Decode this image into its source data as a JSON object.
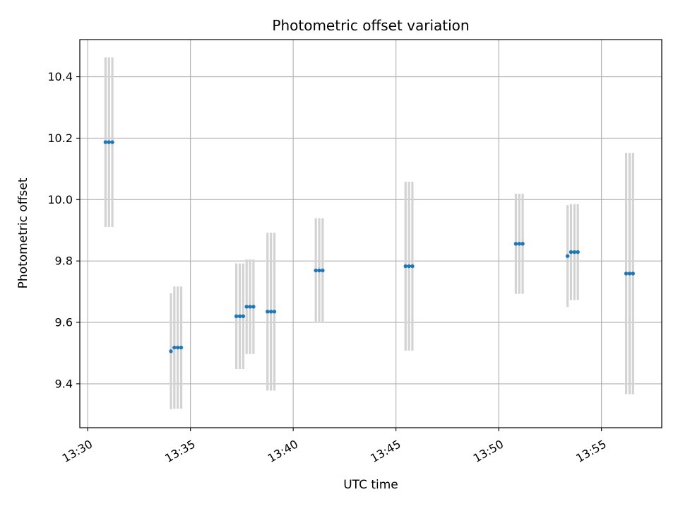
{
  "chart_data": {
    "type": "scatter",
    "title": "Photometric offset variation",
    "xlabel": "UTC time",
    "ylabel": "Photometric offset",
    "x_tick_labels": [
      "13:30",
      "13:35",
      "13:40",
      "13:45",
      "13:50",
      "13:55"
    ],
    "y_tick_labels": [
      "9.4",
      "9.6",
      "9.8",
      "10.0",
      "10.2",
      "10.4"
    ],
    "x_ticks": [
      "13:30",
      "13:35",
      "13:40",
      "13:45",
      "13:50",
      "13:55"
    ],
    "y_ticks": [
      9.4,
      9.6,
      9.8,
      10.0,
      10.2,
      10.4
    ],
    "xlim": [
      "13:29:37",
      "13:57:56"
    ],
    "ylim": [
      9.257,
      10.521
    ],
    "grid": true,
    "series": [
      {
        "marker_color": "#1f77b4",
        "errorbar_color": "#d3d3d3",
        "points": [
          {
            "x": "13:30:52",
            "y": 10.187,
            "err": 0.276
          },
          {
            "x": "13:31:02",
            "y": 10.187,
            "err": 0.276
          },
          {
            "x": "13:31:12",
            "y": 10.187,
            "err": 0.276
          },
          {
            "x": "13:34:03",
            "y": 9.506,
            "err": 0.189
          },
          {
            "x": "13:34:13",
            "y": 9.518,
            "err": 0.199
          },
          {
            "x": "13:34:23",
            "y": 9.518,
            "err": 0.199
          },
          {
            "x": "13:34:33",
            "y": 9.518,
            "err": 0.199
          },
          {
            "x": "13:37:14",
            "y": 9.62,
            "err": 0.172
          },
          {
            "x": "13:37:24",
            "y": 9.62,
            "err": 0.172
          },
          {
            "x": "13:37:34",
            "y": 9.62,
            "err": 0.172
          },
          {
            "x": "13:37:44",
            "y": 9.651,
            "err": 0.154
          },
          {
            "x": "13:37:54",
            "y": 9.651,
            "err": 0.154
          },
          {
            "x": "13:38:04",
            "y": 9.651,
            "err": 0.154
          },
          {
            "x": "13:38:45",
            "y": 9.635,
            "err": 0.257
          },
          {
            "x": "13:38:55",
            "y": 9.635,
            "err": 0.257
          },
          {
            "x": "13:39:05",
            "y": 9.635,
            "err": 0.257
          },
          {
            "x": "13:41:06",
            "y": 9.769,
            "err": 0.17
          },
          {
            "x": "13:41:16",
            "y": 9.769,
            "err": 0.17
          },
          {
            "x": "13:41:26",
            "y": 9.769,
            "err": 0.17
          },
          {
            "x": "13:45:28",
            "y": 9.783,
            "err": 0.275
          },
          {
            "x": "13:45:38",
            "y": 9.783,
            "err": 0.275
          },
          {
            "x": "13:45:48",
            "y": 9.783,
            "err": 0.275
          },
          {
            "x": "13:50:50",
            "y": 9.856,
            "err": 0.163
          },
          {
            "x": "13:51:00",
            "y": 9.856,
            "err": 0.163
          },
          {
            "x": "13:51:10",
            "y": 9.856,
            "err": 0.163
          },
          {
            "x": "13:53:21",
            "y": 9.816,
            "err": 0.166
          },
          {
            "x": "13:53:31",
            "y": 9.829,
            "err": 0.156
          },
          {
            "x": "13:53:41",
            "y": 9.829,
            "err": 0.156
          },
          {
            "x": "13:53:51",
            "y": 9.829,
            "err": 0.156
          },
          {
            "x": "13:56:12",
            "y": 9.759,
            "err": 0.393
          },
          {
            "x": "13:56:22",
            "y": 9.759,
            "err": 0.393
          },
          {
            "x": "13:56:32",
            "y": 9.759,
            "err": 0.393
          }
        ]
      }
    ]
  }
}
